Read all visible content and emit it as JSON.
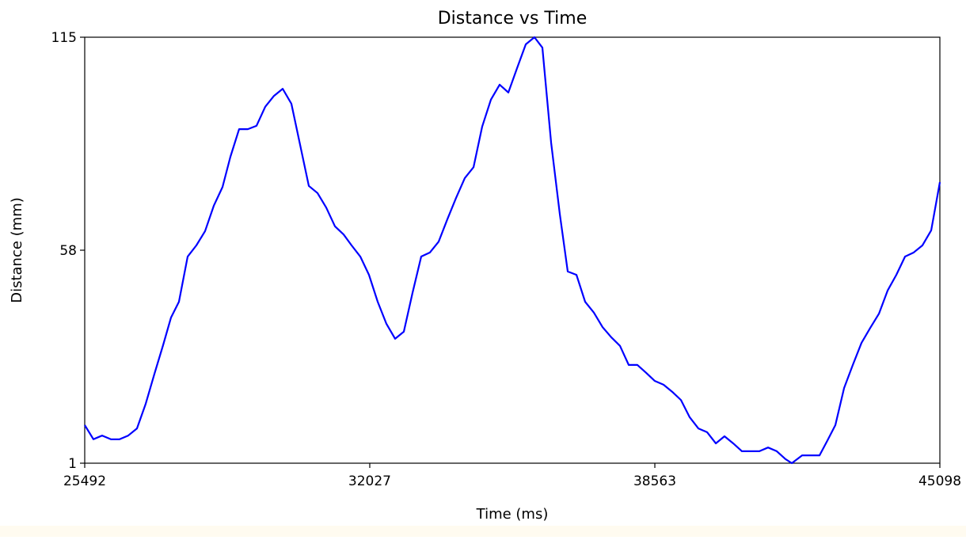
{
  "chart_data": {
    "type": "line",
    "title": "Distance vs Time",
    "x_label": "Time (ms)",
    "y_label": "Distance (mm)",
    "x": [
      25492,
      25692,
      25891,
      26091,
      26291,
      26490,
      26690,
      26890,
      27090,
      27289,
      27471,
      27652,
      27852,
      28052,
      28251,
      28451,
      28651,
      28832,
      29032,
      29232,
      29431,
      29631,
      29831,
      30031,
      30230,
      30430,
      30630,
      30829,
      31029,
      31229,
      31428,
      31610,
      31810,
      32009,
      32209,
      32409,
      32608,
      32808,
      33008,
      33207,
      33407,
      33607,
      33807,
      34006,
      34206,
      34406,
      34605,
      34805,
      35005,
      35204,
      35404,
      35604,
      35803,
      35985,
      36185,
      36384,
      36566,
      36766,
      36965,
      37165,
      37365,
      37564,
      37764,
      37964,
      38163,
      38363,
      38563,
      38763,
      38962,
      39162,
      39362,
      39561,
      39761,
      39961,
      40160,
      40360,
      40560,
      40760,
      40959,
      41159,
      41359,
      41558,
      41704,
      41940,
      42158,
      42339,
      42521,
      42702,
      42902,
      43102,
      43301,
      43501,
      43701,
      43900,
      44100,
      44300,
      44499,
      44699,
      44899,
      45098
    ],
    "series": [
      {
        "color": "#0000ff",
        "values": [
          11.2,
          7.4,
          8.4,
          7.4,
          7.4,
          8.4,
          10.3,
          16.9,
          24.9,
          32.6,
          40.0,
          44.2,
          56.3,
          59.3,
          63.1,
          69.9,
          74.9,
          83.0,
          90.4,
          90.4,
          91.3,
          96.4,
          99.3,
          101.2,
          97.2,
          86.2,
          75.2,
          73.3,
          69.4,
          64.4,
          62.2,
          59.3,
          56.3,
          51.4,
          44.2,
          38.3,
          34.3,
          36.2,
          46.6,
          56.3,
          57.4,
          60.3,
          66.3,
          72.0,
          77.3,
          80.2,
          91.1,
          98.3,
          102.3,
          100.2,
          106.7,
          113.1,
          115,
          112.2,
          86.8,
          67.7,
          52.3,
          51.4,
          44.2,
          41.3,
          37.4,
          34.7,
          32.4,
          27.3,
          27.3,
          25.2,
          23.0,
          22.0,
          20.1,
          17.9,
          13.3,
          10.3,
          9.3,
          6.3,
          8.2,
          6.3,
          4.2,
          4.2,
          4.2,
          5.2,
          4.2,
          2.1,
          1,
          3.1,
          3.1,
          3.1,
          7.1,
          11.2,
          21.1,
          27.3,
          33.2,
          37.2,
          41.0,
          47.2,
          51.4,
          56.3,
          57.4,
          59.3,
          63.3,
          76.2
        ]
      }
    ],
    "xlim": [
      25492,
      45098
    ],
    "ylim": [
      1,
      115
    ],
    "xticks": [
      25492,
      32027,
      38563,
      45098
    ],
    "yticks": [
      1,
      58,
      115
    ]
  }
}
